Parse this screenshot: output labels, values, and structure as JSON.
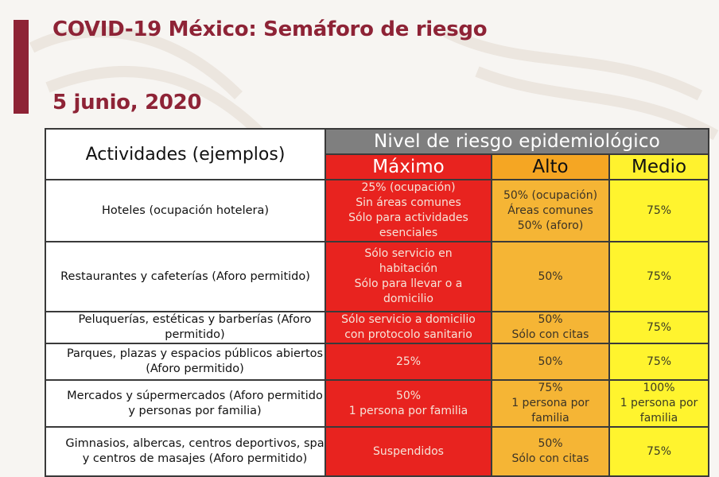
{
  "header": {
    "title": "COVID-19 México: Semáforo de riesgo",
    "date": "5 junio, 2020"
  },
  "colors": {
    "brand": "#8e2336",
    "maximo": "#e8231f",
    "alto": "#f5b535",
    "medio": "#fff42e",
    "nivel_header": "#7f7f7f"
  },
  "table": {
    "activities_header": "Actividades (ejemplos)",
    "risk_header": "Nivel de riesgo epidemiológico",
    "levels": [
      "Máximo",
      "Alto",
      "Medio"
    ],
    "rows": [
      {
        "activity": "Hoteles (ocupación hotelera)",
        "maximo": [
          "25% (ocupación)",
          "Sin áreas comunes",
          "Sólo para actividades",
          "esenciales"
        ],
        "alto": [
          "50% (ocupación)",
          "Áreas comunes",
          "50% (aforo)"
        ],
        "medio": [
          "75%"
        ]
      },
      {
        "activity": "Restaurantes y cafeterías (Aforo permitido)",
        "maximo": [
          "Sólo servicio en",
          "habitación",
          "Sólo para llevar o a",
          "domicilio"
        ],
        "alto": [
          "50%"
        ],
        "medio": [
          "75%"
        ]
      },
      {
        "activity": "Peluquerías, estéticas y barberías (Aforo permitido)",
        "maximo": [
          "Sólo servicio a domicilio",
          "con protocolo sanitario"
        ],
        "alto": [
          "50%",
          "Sólo con citas"
        ],
        "medio": [
          "75%"
        ]
      },
      {
        "activity": "Parques, plazas y espacios públicos abiertos (Aforo permitido)",
        "maximo": [
          "25%"
        ],
        "alto": [
          "50%"
        ],
        "medio": [
          "75%"
        ]
      },
      {
        "activity": "Mercados y súpermercados (Aforo permitido y personas por familia)",
        "maximo": [
          "50%",
          "1 persona por familia"
        ],
        "alto": [
          "75%",
          "1 persona por",
          "familia"
        ],
        "medio": [
          "100%",
          "1 persona por",
          "familia"
        ]
      },
      {
        "activity": "Gimnasios, albercas, centros deportivos, spa y centros de masajes (Aforo permitido)",
        "maximo": [
          "Suspendidos"
        ],
        "alto": [
          "50%",
          "Sólo con citas"
        ],
        "medio": [
          "75%"
        ]
      }
    ]
  }
}
